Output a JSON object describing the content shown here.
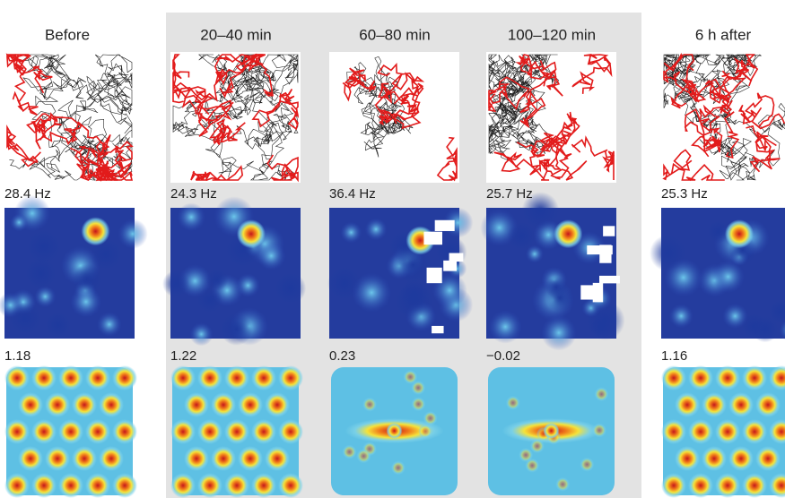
{
  "columns": [
    {
      "title": "Before",
      "rate": "28.4 Hz",
      "gridness": "1.18"
    },
    {
      "title": "20–40 min",
      "rate": "24.3 Hz",
      "gridness": "1.22"
    },
    {
      "title": "60–80 min",
      "rate": "36.4 Hz",
      "gridness": "0.23"
    },
    {
      "title": "100–120 min",
      "rate": "25.7 Hz",
      "gridness": "−0.02"
    },
    {
      "title": "6 h after",
      "rate": "25.3 Hz",
      "gridness": "1.16"
    }
  ]
}
